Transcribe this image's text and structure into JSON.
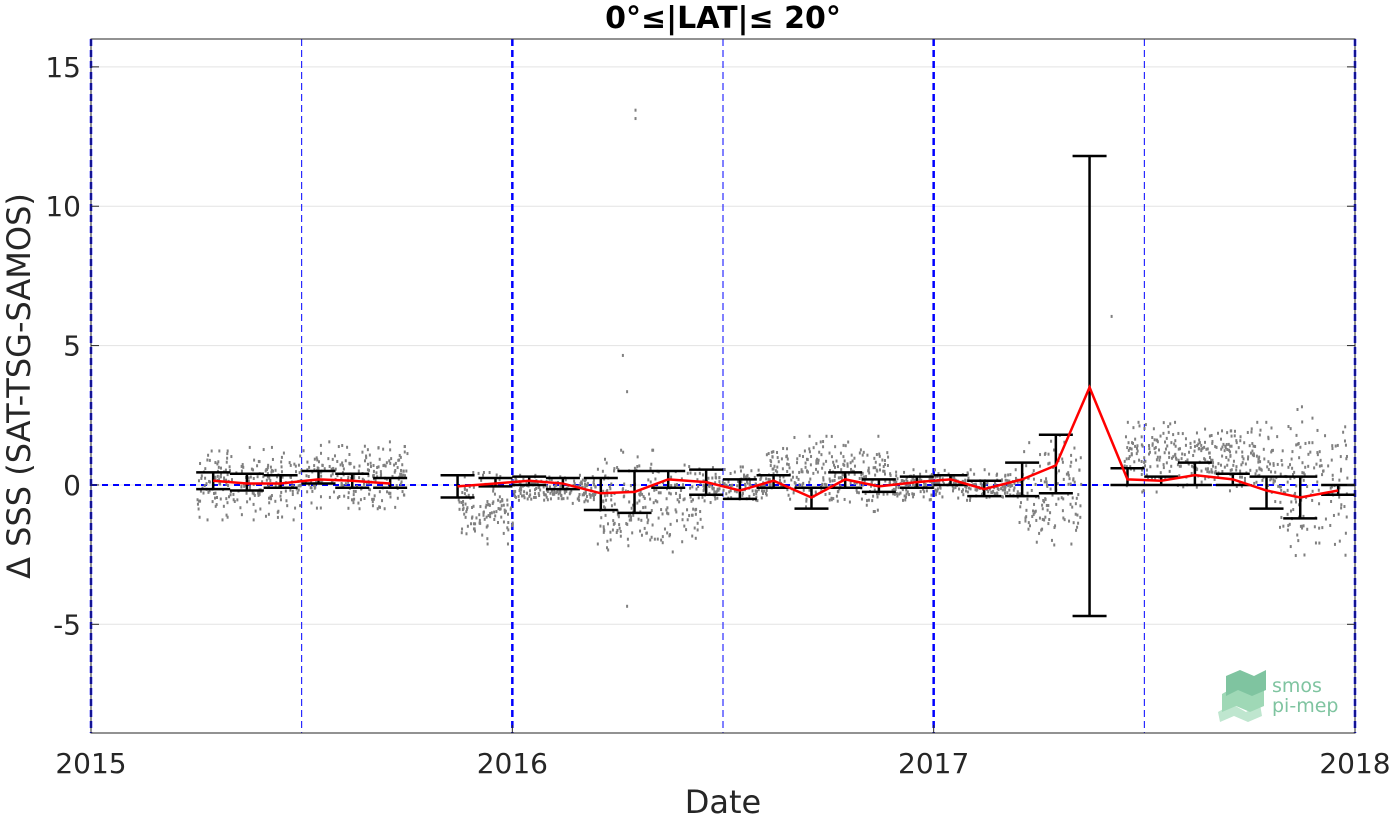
{
  "chart_data": {
    "type": "line",
    "title": "0°≤|LAT|≤ 20°",
    "xlabel": "Date",
    "ylabel": "Δ SSS (SAT-TSG-SAMOS)",
    "xlim": [
      2015,
      2018
    ],
    "ylim": [
      -8.9,
      16
    ],
    "x_ticks": [
      2015,
      2016,
      2017,
      2018
    ],
    "x_tick_labels": [
      "2015",
      "2016",
      "2017",
      "2018"
    ],
    "y_ticks": [
      -5,
      0,
      5,
      10,
      15
    ],
    "y_tick_labels": [
      "-5",
      "0",
      "5",
      "10",
      "15"
    ],
    "grid": true,
    "zero_line": {
      "y": 0,
      "color": "#0000ff",
      "style": "dashed"
    },
    "year_lines": [
      2015,
      2016,
      2017,
      2018
    ],
    "half_year_lines": [
      2015.5,
      2016.5,
      2017.5
    ],
    "colors": {
      "mean_line": "#ff0000",
      "error_bars": "#000000",
      "scatter": "#808080",
      "guide_lines": "#0000ff"
    },
    "series": [
      {
        "points": [
          {
            "x": 2015.29,
            "y": 0.15,
            "lo": -0.15,
            "hi": 0.45
          },
          {
            "x": 2015.37,
            "y": 0.05,
            "lo": -0.2,
            "hi": 0.4
          },
          {
            "x": 2015.45,
            "y": 0.05,
            "lo": -0.1,
            "hi": 0.35
          },
          {
            "x": 2015.54,
            "y": 0.2,
            "lo": 0.05,
            "hi": 0.5
          },
          {
            "x": 2015.62,
            "y": 0.15,
            "lo": -0.1,
            "hi": 0.4
          },
          {
            "x": 2015.71,
            "y": 0.05,
            "lo": -0.1,
            "hi": 0.25
          }
        ]
      },
      {
        "points": [
          {
            "x": 2015.87,
            "y": -0.05,
            "lo": -0.45,
            "hi": 0.35
          },
          {
            "x": 2015.96,
            "y": 0.05,
            "lo": -0.05,
            "hi": 0.25
          },
          {
            "x": 2016.04,
            "y": 0.15,
            "lo": 0.0,
            "hi": 0.3
          },
          {
            "x": 2016.12,
            "y": 0.05,
            "lo": -0.15,
            "hi": 0.25
          },
          {
            "x": 2016.21,
            "y": -0.3,
            "lo": -0.9,
            "hi": 0.25
          },
          {
            "x": 2016.29,
            "y": -0.25,
            "lo": -1.0,
            "hi": 0.5
          },
          {
            "x": 2016.37,
            "y": 0.2,
            "lo": -0.1,
            "hi": 0.5
          },
          {
            "x": 2016.46,
            "y": 0.1,
            "lo": -0.35,
            "hi": 0.55
          },
          {
            "x": 2016.54,
            "y": -0.2,
            "lo": -0.5,
            "hi": 0.2
          },
          {
            "x": 2016.62,
            "y": 0.15,
            "lo": -0.1,
            "hi": 0.35
          },
          {
            "x": 2016.71,
            "y": -0.45,
            "lo": -0.85,
            "hi": -0.1
          },
          {
            "x": 2016.79,
            "y": 0.2,
            "lo": -0.1,
            "hi": 0.45
          },
          {
            "x": 2016.87,
            "y": -0.05,
            "lo": -0.25,
            "hi": 0.2
          },
          {
            "x": 2016.96,
            "y": 0.1,
            "lo": -0.1,
            "hi": 0.3
          },
          {
            "x": 2017.04,
            "y": 0.2,
            "lo": 0.0,
            "hi": 0.35
          },
          {
            "x": 2017.12,
            "y": -0.15,
            "lo": -0.4,
            "hi": 0.15
          },
          {
            "x": 2017.21,
            "y": 0.2,
            "lo": -0.4,
            "hi": 0.8
          },
          {
            "x": 2017.29,
            "y": 0.7,
            "lo": -0.3,
            "hi": 1.8
          },
          {
            "x": 2017.37,
            "y": 3.5,
            "lo": -4.7,
            "hi": 11.8
          },
          {
            "x": 2017.46,
            "y": 0.2,
            "lo": 0.0,
            "hi": 0.6
          },
          {
            "x": 2017.54,
            "y": 0.15,
            "lo": 0.0,
            "hi": 0.3
          },
          {
            "x": 2017.62,
            "y": 0.35,
            "lo": 0.0,
            "hi": 0.8
          },
          {
            "x": 2017.71,
            "y": 0.2,
            "lo": 0.0,
            "hi": 0.4
          },
          {
            "x": 2017.79,
            "y": -0.2,
            "lo": -0.85,
            "hi": 0.3
          },
          {
            "x": 2017.87,
            "y": -0.45,
            "lo": -1.2,
            "hi": 0.3
          },
          {
            "x": 2017.96,
            "y": -0.2,
            "lo": -0.35,
            "hi": 0.0
          }
        ]
      }
    ],
    "scatter_clusters": [
      {
        "x": [
          2015.25,
          2015.5
        ],
        "y": [
          -1.2,
          1.4
        ]
      },
      {
        "x": [
          2015.5,
          2015.75
        ],
        "y": [
          -0.8,
          1.6
        ]
      },
      {
        "x": [
          2015.87,
          2016.0
        ],
        "y": [
          -2.1,
          0.5
        ]
      },
      {
        "x": [
          2016.0,
          2016.2
        ],
        "y": [
          -0.7,
          0.4
        ]
      },
      {
        "x": [
          2016.2,
          2016.45
        ],
        "y": [
          -2.5,
          1.3
        ]
      },
      {
        "x": [
          2016.45,
          2016.6
        ],
        "y": [
          -0.6,
          0.7
        ]
      },
      {
        "x": [
          2016.6,
          2016.9
        ],
        "y": [
          -0.9,
          1.8
        ]
      },
      {
        "x": [
          2016.9,
          2017.2
        ],
        "y": [
          -0.5,
          0.6
        ]
      },
      {
        "x": [
          2017.2,
          2017.35
        ],
        "y": [
          -2.1,
          1.9
        ]
      },
      {
        "x": [
          2017.45,
          2017.8
        ],
        "y": [
          -0.2,
          2.3
        ]
      },
      {
        "x": [
          2017.8,
          2017.98
        ],
        "y": [
          -2.6,
          2.9
        ]
      }
    ],
    "outliers": [
      {
        "x": 2016.29,
        "y": 13.5
      },
      {
        "x": 2016.29,
        "y": 13.2
      },
      {
        "x": 2016.26,
        "y": 4.7
      },
      {
        "x": 2016.27,
        "y": 3.4
      },
      {
        "x": 2016.27,
        "y": -4.3
      },
      {
        "x": 2017.42,
        "y": 6.1
      }
    ]
  },
  "logo": {
    "line1": "smos",
    "line2": "pi-mep"
  }
}
